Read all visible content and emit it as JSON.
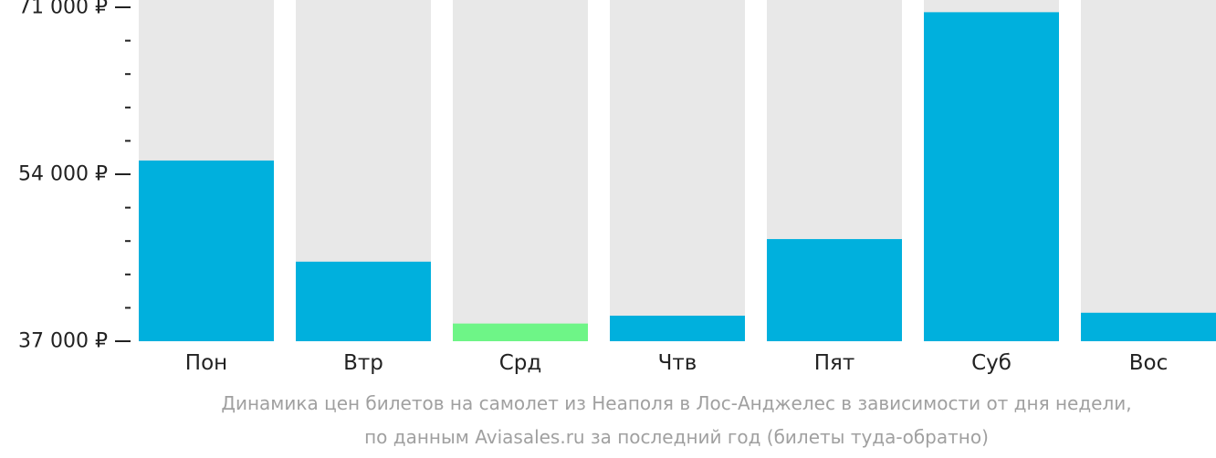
{
  "chart_data": {
    "type": "bar",
    "categories": [
      "Пон",
      "Втр",
      "Срд",
      "Чтв",
      "Пят",
      "Суб",
      "Вос"
    ],
    "values": [
      55400,
      45100,
      38800,
      39600,
      47400,
      70500,
      39900
    ],
    "highlight_index": 2,
    "ylim": [
      37000,
      71000
    ],
    "yticks": [
      37000,
      54000,
      71000
    ],
    "ytick_labels": [
      "37 000 ₽",
      "54 000 ₽",
      "71 000 ₽"
    ],
    "minor_ticks_per_interval": 5,
    "grid": false,
    "colors": {
      "bar": "#00b0dd",
      "highlight": "#6ef587",
      "background_bar": "#e8e8e8",
      "axis": "#222222"
    },
    "caption": [
      "Динамика цен билетов на самолет из Неаполя в Лос-Анджелес в зависимости от дня недели,",
      "по данным Aviasales.ru за последний год (билеты туда-обратно)"
    ]
  }
}
